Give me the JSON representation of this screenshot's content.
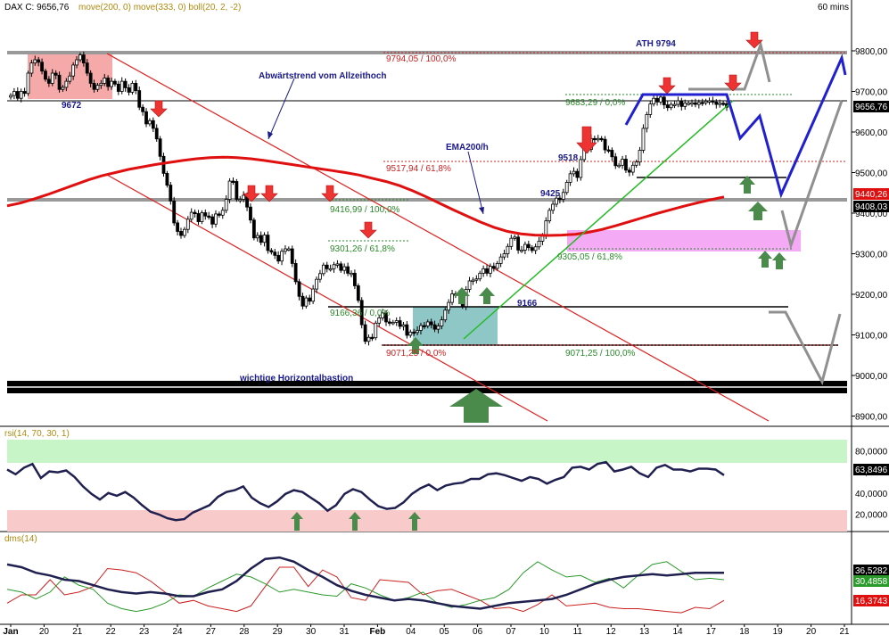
{
  "header": {
    "symbol": "DAX C: 9656,76",
    "indicators": "move(200, 0) move(333, 0) boll(20, 2, -2)",
    "timeframe": "60 mins"
  },
  "colors": {
    "up": "#000000",
    "down": "#000000",
    "ema": "#e01010",
    "channel": "#e02020",
    "trend_green": "#22bb22",
    "projection_blue": "#2020d0",
    "projection_gray": "#909090",
    "arrow_red": "#ee3333",
    "arrow_green": "#4a8a4a",
    "fib_green": "#2a8a2a",
    "fib_red": "#cc2222",
    "label_navy": "#1a1a8a",
    "rsi_line": "#202050",
    "rsi_over": "#c8f5c8",
    "rsi_under": "#f8caca",
    "dms_adx": "#202050",
    "dms_plus": "#2a9a2a",
    "dms_minus": "#cc2020"
  },
  "chart_data": [
    {
      "type": "candlestick",
      "title": "DAX C: 9656,76",
      "ylim": [
        8880,
        9830
      ],
      "y_ticks": [
        "9800,00",
        "9700,00",
        "9600,00",
        "9500,00",
        "9400,00",
        "9300,00",
        "9200,00",
        "9100,00",
        "9000,00",
        "8900,00"
      ],
      "x_ticks": [
        "Jan",
        "20",
        "21",
        "22",
        "23",
        "24",
        "27",
        "28",
        "29",
        "30",
        "31",
        "Feb",
        "04",
        "05",
        "06",
        "07",
        "10",
        "11",
        "12",
        "13",
        "14",
        "17",
        "18",
        "19",
        "20",
        "21"
      ],
      "closes": [
        9690,
        9700,
        9683,
        9700,
        9695,
        9745,
        9770,
        9778,
        9772,
        9750,
        9730,
        9720,
        9745,
        9740,
        9705,
        9710,
        9725,
        9738,
        9765,
        9778,
        9790,
        9770,
        9745,
        9720,
        9705,
        9715,
        9720,
        9733,
        9712,
        9725,
        9718,
        9700,
        9725,
        9709,
        9698,
        9720,
        9702,
        9661,
        9650,
        9620,
        9628,
        9609,
        9583,
        9540,
        9498,
        9469,
        9430,
        9376,
        9355,
        9345,
        9360,
        9385,
        9402,
        9399,
        9379,
        9401,
        9393,
        9391,
        9373,
        9398,
        9395,
        9407,
        9434,
        9479,
        9478,
        9434,
        9434,
        9444,
        9415,
        9383,
        9339,
        9345,
        9328,
        9346,
        9308,
        9304,
        9296,
        9282,
        9306,
        9312,
        9312,
        9276,
        9231,
        9195,
        9171,
        9191,
        9183,
        9213,
        9237,
        9251,
        9272,
        9263,
        9263,
        9273,
        9275,
        9259,
        9268,
        9252,
        9252,
        9221,
        9185,
        9125,
        9084,
        9094,
        9093,
        9129,
        9142,
        9154,
        9132,
        9130,
        9131,
        9135,
        9121,
        9125,
        9099,
        9107,
        9106,
        9111,
        9123,
        9122,
        9132,
        9125,
        9114,
        9122,
        9137,
        9161,
        9180,
        9201,
        9201,
        9198,
        9170,
        9212,
        9233,
        9235,
        9238,
        9252,
        9263,
        9252,
        9269,
        9264,
        9276,
        9292,
        9300,
        9318,
        9338,
        9341,
        9309,
        9309,
        9323,
        9315,
        9308,
        9317,
        9331,
        9344,
        9381,
        9407,
        9422,
        9437,
        9434,
        9451,
        9476,
        9497,
        9503,
        9488,
        9532,
        9562,
        9557,
        9584,
        9583,
        9584,
        9582,
        9556,
        9555,
        9539,
        9517,
        9518,
        9533,
        9506,
        9501,
        9518,
        9526,
        9555,
        9609,
        9643,
        9669,
        9683,
        9674,
        9686,
        9667,
        9660,
        9668,
        9668,
        9677,
        9663,
        9671,
        9671,
        9672,
        9668,
        9673,
        9672,
        9676,
        9677,
        9674,
        9668,
        9671,
        9670,
        9661
      ],
      "ema200": {
        "name": "EMA200/h",
        "values": [
          9418,
          9425,
          9435,
          9446,
          9458,
          9470,
          9482,
          9492,
          9500,
          9508,
          9514,
          9520,
          9525,
          9530,
          9534,
          9537,
          9538,
          9537,
          9534,
          9530,
          9525,
          9520,
          9515,
          9510,
          9505,
          9500,
          9494,
          9486,
          9478,
          9468,
          9455,
          9440,
          9424,
          9408,
          9393,
          9378,
          9365,
          9355,
          9349,
          9346,
          9345,
          9346,
          9348,
          9353,
          9360,
          9369,
          9379,
          9389,
          9399,
          9408,
          9417,
          9425,
          9433,
          9440
        ]
      }
    },
    {
      "type": "line",
      "title": "rsi(14, 70, 30, 1)",
      "ylim": [
        0,
        100
      ],
      "y_ticks": [
        "80,0000",
        "60,0000",
        "40,0000",
        "20,0000"
      ],
      "overbought": 70,
      "oversold": 30,
      "series": [
        {
          "name": "rsi",
          "last_label": "63,8496",
          "values": [
            70,
            65,
            72,
            76,
            61,
            68,
            67,
            69,
            62,
            52,
            44,
            38,
            45,
            42,
            46,
            40,
            32,
            25,
            22,
            18,
            16,
            17,
            24,
            28,
            32,
            41,
            46,
            48,
            52,
            40,
            34,
            30,
            36,
            44,
            48,
            46,
            40,
            34,
            26,
            32,
            44,
            49,
            46,
            38,
            31,
            28,
            29,
            35,
            44,
            50,
            54,
            48,
            53,
            55,
            56,
            60,
            60,
            65,
            66,
            64,
            61,
            58,
            62,
            60,
            55,
            59,
            62,
            72,
            73,
            70,
            76,
            78,
            68,
            70,
            73,
            66,
            62,
            72,
            75,
            70,
            70,
            68,
            71,
            71,
            70,
            64
          ]
        }
      ]
    },
    {
      "type": "line",
      "title": "dms(14)",
      "ylim": [
        0,
        60
      ],
      "last_labels": [
        "36,5282",
        "30,4858",
        "16,3743"
      ],
      "series": [
        {
          "name": "adx",
          "values": [
            42,
            40,
            36,
            34,
            31,
            30,
            27,
            24,
            22,
            21,
            22,
            21,
            19,
            19,
            22,
            24,
            30,
            39,
            46,
            47,
            44,
            38,
            33,
            27,
            23,
            20,
            18,
            16,
            17,
            16,
            14,
            12,
            11,
            10,
            12,
            14,
            15,
            16,
            17,
            20,
            24,
            28,
            31,
            33,
            34,
            35,
            34,
            35,
            36,
            36,
            36
          ]
        },
        {
          "name": "di_plus",
          "values": [
            24,
            22,
            17,
            22,
            33,
            27,
            24,
            14,
            10,
            8,
            10,
            14,
            20,
            19,
            25,
            30,
            35,
            33,
            28,
            22,
            24,
            22,
            20,
            19,
            28,
            25,
            20,
            16,
            18,
            22,
            14,
            11,
            13,
            16,
            18,
            24,
            36,
            44,
            38,
            33,
            34,
            29,
            32,
            25,
            34,
            42,
            44,
            37,
            31,
            32,
            31
          ]
        },
        {
          "name": "di_minus",
          "values": [
            14,
            20,
            20,
            31,
            20,
            22,
            26,
            39,
            38,
            36,
            30,
            22,
            14,
            16,
            12,
            10,
            8,
            12,
            26,
            40,
            40,
            26,
            38,
            33,
            18,
            16,
            31,
            30,
            29,
            20,
            23,
            24,
            20,
            16,
            10,
            11,
            8,
            13,
            20,
            12,
            13,
            14,
            11,
            10,
            10,
            9,
            8,
            7,
            11,
            10,
            16
          ]
        }
      ]
    }
  ],
  "annotations": {
    "ath": "ATH 9794",
    "trend": "Abwärtstrend vom Allzeithoch",
    "ema_label": "EMA200/h",
    "bastion": "wichtige Horizontalbastion",
    "lvl_9672": "9672",
    "lvl_9518": "9518",
    "lvl_9425": "9425",
    "lvl_9166": "9166",
    "fib_9794": "9794,05 / 100,0%",
    "fib_9683": "9683,29 / 0,0%",
    "fib_9517": "9517,94 / 61,8%",
    "fib_9416": "9416,99 / 100,0%",
    "fib_9301": "9301,26 / 61,8%",
    "fib_9305": "9305,05 / 61,8%",
    "fib_9166": "9166,36 / 0,0%",
    "fib_9071a": "9071,25 / 0,0%",
    "fib_9071b": "9071,25 / 100,0%"
  },
  "right_axis": {
    "last_price": "9656,76",
    "ma200": "9440,26",
    "ma333": "9408,03"
  }
}
